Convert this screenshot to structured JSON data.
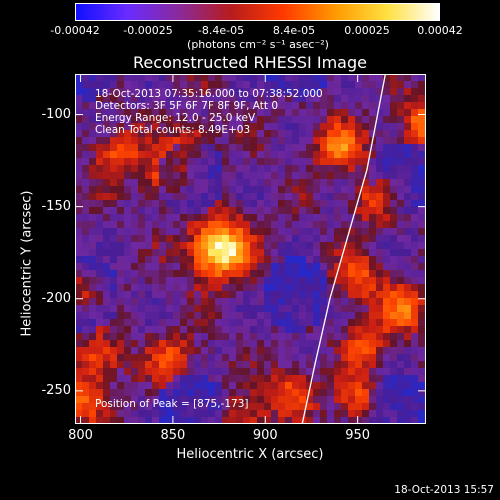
{
  "colorbar": {
    "ticks": [
      "-0.00042",
      "-0.00025",
      "-8.4e-05",
      "8.4e-05",
      "0.00025",
      "0.00042"
    ],
    "units": "(photons cm⁻² s⁻¹ asec⁻²)",
    "colors": [
      "#1010ff",
      "#6a2cff",
      "#8a2a9a",
      "#b81c1c",
      "#ff3a00",
      "#ff9a00",
      "#ffe040",
      "#ffffff"
    ]
  },
  "chart_data": {
    "type": "heatmap",
    "title": "Reconstructed RHESSI Image",
    "xlabel": "Heliocentric X (arcsec)",
    "ylabel": "Heliocentric Y (arcsec)",
    "xlim": [
      797,
      987
    ],
    "ylim": [
      -268,
      -78
    ],
    "xticks": [
      "800",
      "850",
      "900",
      "950"
    ],
    "yticks": [
      "-100",
      "-150",
      "-200",
      "-250"
    ],
    "xtick_values": [
      800,
      850,
      900,
      950
    ],
    "ytick_values": [
      -100,
      -150,
      -200,
      -250
    ],
    "peak": [
      875,
      -173
    ],
    "limb_curve": [
      [
        965,
        -78
      ],
      [
        955,
        -130
      ],
      [
        945,
        -165
      ],
      [
        935,
        -200
      ],
      [
        927,
        -235
      ],
      [
        920,
        -268
      ]
    ],
    "hot_spots": [
      [
        875,
        -173,
        1.0
      ],
      [
        940,
        -117,
        0.55
      ],
      [
        985,
        -105,
        0.55
      ],
      [
        820,
        -120,
        0.45
      ],
      [
        845,
        -135,
        0.45
      ],
      [
        860,
        -118,
        0.4
      ],
      [
        960,
        -145,
        0.5
      ],
      [
        950,
        -190,
        0.45
      ],
      [
        975,
        -205,
        0.5
      ],
      [
        800,
        -195,
        0.45
      ],
      [
        810,
        -232,
        0.45
      ],
      [
        850,
        -232,
        0.4
      ],
      [
        915,
        -250,
        0.45
      ],
      [
        950,
        -255,
        0.4
      ],
      [
        800,
        -255,
        0.5
      ],
      [
        955,
        -225,
        0.4
      ],
      [
        890,
        -265,
        0.35
      ]
    ],
    "annotations": {
      "time": "18-Oct-2013 07:35:16.000 to 07:38:52.000",
      "detectors": "Detectors: 3F 5F 6F 7F 8F 9F, Att 0",
      "energy": "Energy Range: 12.0 - 25.0 keV",
      "clean": "Clean     Total counts: 8.49E+03",
      "peak_label": "Position of Peak = [875,-173]"
    }
  },
  "footer": {
    "timestamp": "18-Oct-2013 15:57"
  }
}
